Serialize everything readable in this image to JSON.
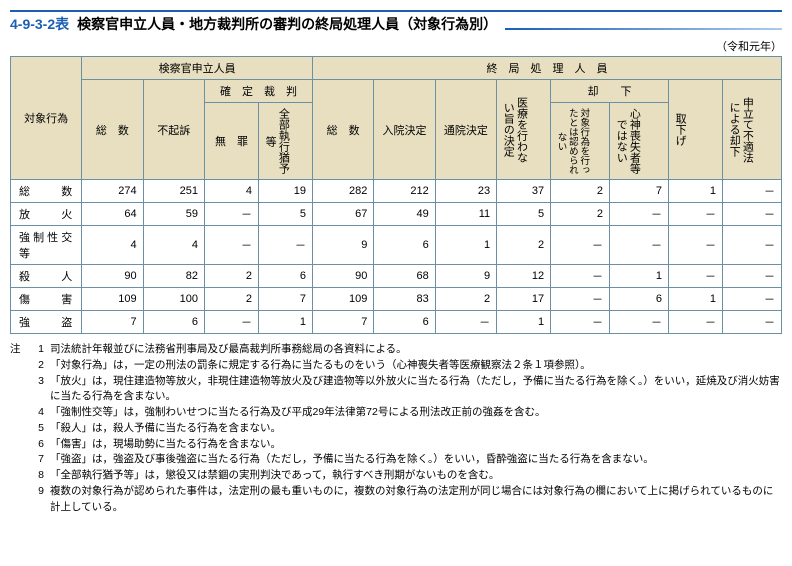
{
  "title": {
    "number": "4-9-3-2表",
    "text": "検察官申立人員・地方裁判所の審判の終局処理人員（対象行為別）"
  },
  "era": "（令和元年）",
  "header": {
    "corner": "対象行為",
    "group1": "検察官申立人員",
    "group2": "終　局　処　理　人　員",
    "g1_total": "総　数",
    "g1_nopros": "不起訴",
    "g1_ruling": "確　定　裁　判",
    "g1_innocent": "無　罪",
    "g1_allsusp": "全部執行猶予等",
    "g2_total": "総　数",
    "g2_inpatient": "入院決定",
    "g2_outpatient": "通院決定",
    "g2_notreat": "医療を行わない旨の決定",
    "g2_dismiss": "却　　下",
    "g2_dismiss1": "対象行為を行ったとは認められない",
    "g2_dismiss2": "心神喪失者等ではない",
    "g2_withdraw": "取下げ",
    "g2_illegal": "申立て不適法による却下"
  },
  "rows": [
    {
      "label": "総　　数",
      "v": [
        "274",
        "251",
        "4",
        "19",
        "282",
        "212",
        "23",
        "37",
        "2",
        "7",
        "1",
        "－"
      ]
    },
    {
      "label": "放　火",
      "v": [
        "64",
        "59",
        "－",
        "5",
        "67",
        "49",
        "11",
        "5",
        "2",
        "－",
        "－",
        "－"
      ]
    },
    {
      "label": "強制性交等",
      "v": [
        "4",
        "4",
        "－",
        "－",
        "9",
        "6",
        "1",
        "2",
        "－",
        "－",
        "－",
        "－"
      ]
    },
    {
      "label": "殺　人",
      "v": [
        "90",
        "82",
        "2",
        "6",
        "90",
        "68",
        "9",
        "12",
        "－",
        "1",
        "－",
        "－"
      ]
    },
    {
      "label": "傷　害",
      "v": [
        "109",
        "100",
        "2",
        "7",
        "109",
        "83",
        "2",
        "17",
        "－",
        "6",
        "1",
        "－"
      ]
    },
    {
      "label": "強　盗",
      "v": [
        "7",
        "6",
        "－",
        "1",
        "7",
        "6",
        "－",
        "1",
        "－",
        "－",
        "－",
        "－"
      ]
    }
  ],
  "notes_label": "注",
  "notes": [
    "司法統計年報並びに法務省刑事局及び最高裁判所事務総局の各資料による。",
    "「対象行為」は，一定の刑法の罰条に規定する行為に当たるものをいう（心神喪失者等医療観察法２条１項参照）。",
    "「放火」は，現住建造物等放火，非現住建造物等放火及び建造物等以外放火に当たる行為（ただし，予備に当たる行為を除く。）をいい，延焼及び消火妨害に当たる行為を含まない。",
    "「強制性交等」は，強制わいせつに当たる行為及び平成29年法律第72号による刑法改正前の強姦を含む。",
    "「殺人」は，殺人予備に当たる行為を含まない。",
    "「傷害」は，現場助勢に当たる行為を含まない。",
    "「強盗」は，強盗及び事後強盗に当たる行為（ただし，予備に当たる行為を除く。）をいい，昏酔強盗に当たる行為を含まない。",
    "「全部執行猶予等」は，懲役又は禁錮の実刑判決であって，執行すべき刑期がないものを含む。",
    "複数の対象行為が認められた事件は，法定刑の最も重いものに，複数の対象行為の法定刑が同じ場合には対象行為の欄において上に掲げられているものに計上している。"
  ]
}
